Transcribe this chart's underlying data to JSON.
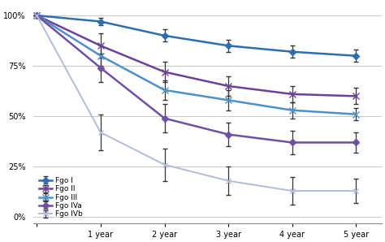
{
  "x": [
    0,
    1,
    2,
    3,
    4,
    5
  ],
  "series": {
    "Fgo I": {
      "y": [
        100,
        97,
        90,
        85,
        82,
        80
      ],
      "yerr_lo": [
        0,
        2,
        3,
        3,
        3,
        3
      ],
      "yerr_hi": [
        0,
        2,
        3,
        3,
        3,
        3
      ],
      "color": "#2E6EAF",
      "marker": "D",
      "linewidth": 1.8,
      "markersize": 4
    },
    "Fgo II": {
      "y": [
        100,
        85,
        72,
        65,
        61,
        60
      ],
      "yerr_lo": [
        0,
        6,
        5,
        5,
        4,
        4
      ],
      "yerr_hi": [
        0,
        6,
        5,
        5,
        4,
        4
      ],
      "color": "#6B4199",
      "marker": "x",
      "linewidth": 1.8,
      "markersize": 6
    },
    "Fgo III": {
      "y": [
        100,
        80,
        63,
        58,
        53,
        51
      ],
      "yerr_lo": [
        0,
        5,
        5,
        5,
        4,
        3
      ],
      "yerr_hi": [
        0,
        5,
        5,
        5,
        4,
        3
      ],
      "color": "#4E90C8",
      "marker": "x",
      "linewidth": 1.8,
      "markersize": 6
    },
    "Fgo IVa": {
      "y": [
        100,
        74,
        49,
        41,
        37,
        37
      ],
      "yerr_lo": [
        0,
        7,
        7,
        6,
        6,
        5
      ],
      "yerr_hi": [
        0,
        7,
        7,
        6,
        6,
        5
      ],
      "color": "#7050A0",
      "marker": "D",
      "linewidth": 1.8,
      "markersize": 4
    },
    "Fgo IVb": {
      "y": [
        100,
        42,
        26,
        18,
        13,
        13
      ],
      "yerr_lo": [
        0,
        9,
        8,
        7,
        7,
        6
      ],
      "yerr_hi": [
        0,
        9,
        8,
        7,
        7,
        6
      ],
      "color": "#B0BCD8",
      "marker": "x",
      "linewidth": 1.4,
      "markersize": 5
    }
  },
  "x_ticks": [
    0,
    1,
    2,
    3,
    4,
    5
  ],
  "x_tick_labels": [
    "",
    "1 year",
    "2 year",
    "3 year",
    "4 year",
    "5 year"
  ],
  "y_ticks": [
    0,
    25,
    50,
    75,
    100
  ],
  "y_tick_labels": [
    "0%",
    "25%",
    "50%",
    "75%",
    "100%"
  ],
  "ylim": [
    -3,
    106
  ],
  "xlim": [
    -0.05,
    5.4
  ],
  "background_color": "#FFFFFF",
  "grid_color": "#C8C8C8",
  "legend_order": [
    "Fgo I",
    "Fgo II",
    "Fgo III",
    "Fgo IVa",
    "Fgo IVb"
  ]
}
